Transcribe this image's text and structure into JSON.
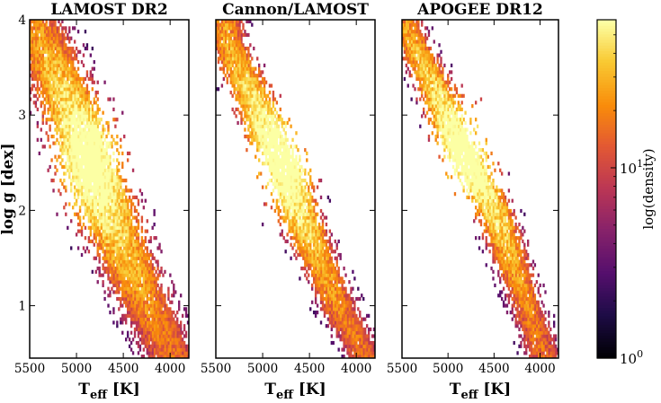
{
  "chart_data": [
    {
      "type": "heatmap",
      "title": "LAMOST DR2",
      "xlabel": "T",
      "xlabel_sub": "eff",
      "xlabel_unit": "[K]",
      "ylabel": "log g [dex]",
      "xlim": [
        5500,
        3800
      ],
      "ylim": [
        4,
        0.45
      ],
      "xticks": [
        5500,
        5000,
        4500,
        4000
      ],
      "yticks": [
        1,
        2,
        3,
        4
      ],
      "density_model": {
        "track": [
          [
            5450,
            4.0
          ],
          [
            5150,
            3.3
          ],
          [
            4900,
            2.6
          ],
          [
            4600,
            1.8
          ],
          [
            4300,
            1.1
          ],
          [
            4000,
            0.5
          ]
        ],
        "track_width_teff": 340,
        "y_range": [
          0.5,
          4.0
        ],
        "peak": {
          "teff": 4850,
          "logg": 2.5,
          "value": 60
        },
        "background_value": 1
      }
    },
    {
      "type": "heatmap",
      "title": "Cannon/LAMOST",
      "xlabel": "T",
      "xlabel_sub": "eff",
      "xlabel_unit": "[K]",
      "xlim": [
        5500,
        3800
      ],
      "ylim": [
        4,
        0.45
      ],
      "xticks": [
        5500,
        5000,
        4500,
        4000
      ],
      "yticks": [
        1,
        2,
        3,
        4
      ],
      "density_model": {
        "track": [
          [
            5400,
            3.8
          ],
          [
            5150,
            3.3
          ],
          [
            4950,
            2.8
          ],
          [
            4800,
            2.5
          ],
          [
            4500,
            1.7
          ],
          [
            4150,
            0.9
          ],
          [
            3900,
            0.45
          ]
        ],
        "track_width_teff": 230,
        "y_range": [
          0.45,
          4.0
        ],
        "peak": {
          "teff": 4780,
          "logg": 2.55,
          "value": 60
        },
        "background_value": 1
      }
    },
    {
      "type": "heatmap",
      "title": "APOGEE DR12",
      "xlabel": "T",
      "xlabel_sub": "eff",
      "xlabel_unit": "[K]",
      "xlim": [
        5500,
        3800
      ],
      "ylim": [
        4,
        0.45
      ],
      "xticks": [
        5500,
        5000,
        4500,
        4000
      ],
      "yticks": [
        1,
        2,
        3,
        4
      ],
      "density_model": {
        "track": [
          [
            5450,
            3.9
          ],
          [
            5150,
            3.3
          ],
          [
            4950,
            2.8
          ],
          [
            4800,
            2.55
          ],
          [
            4500,
            2.0
          ],
          [
            4250,
            1.3
          ],
          [
            3950,
            0.45
          ]
        ],
        "track_width_teff": 210,
        "y_range": [
          0.45,
          4.0
        ],
        "peak": {
          "teff": 4800,
          "logg": 2.6,
          "value": 60
        },
        "background_value": 1
      }
    }
  ],
  "colorbar": {
    "label": "log(density)",
    "colormap": "inferno",
    "scale": "log",
    "range": [
      1,
      60
    ],
    "ticks": [
      {
        "base": "10",
        "exp": "0",
        "value": 1
      },
      {
        "base": "10",
        "exp": "1",
        "value": 10
      }
    ]
  }
}
